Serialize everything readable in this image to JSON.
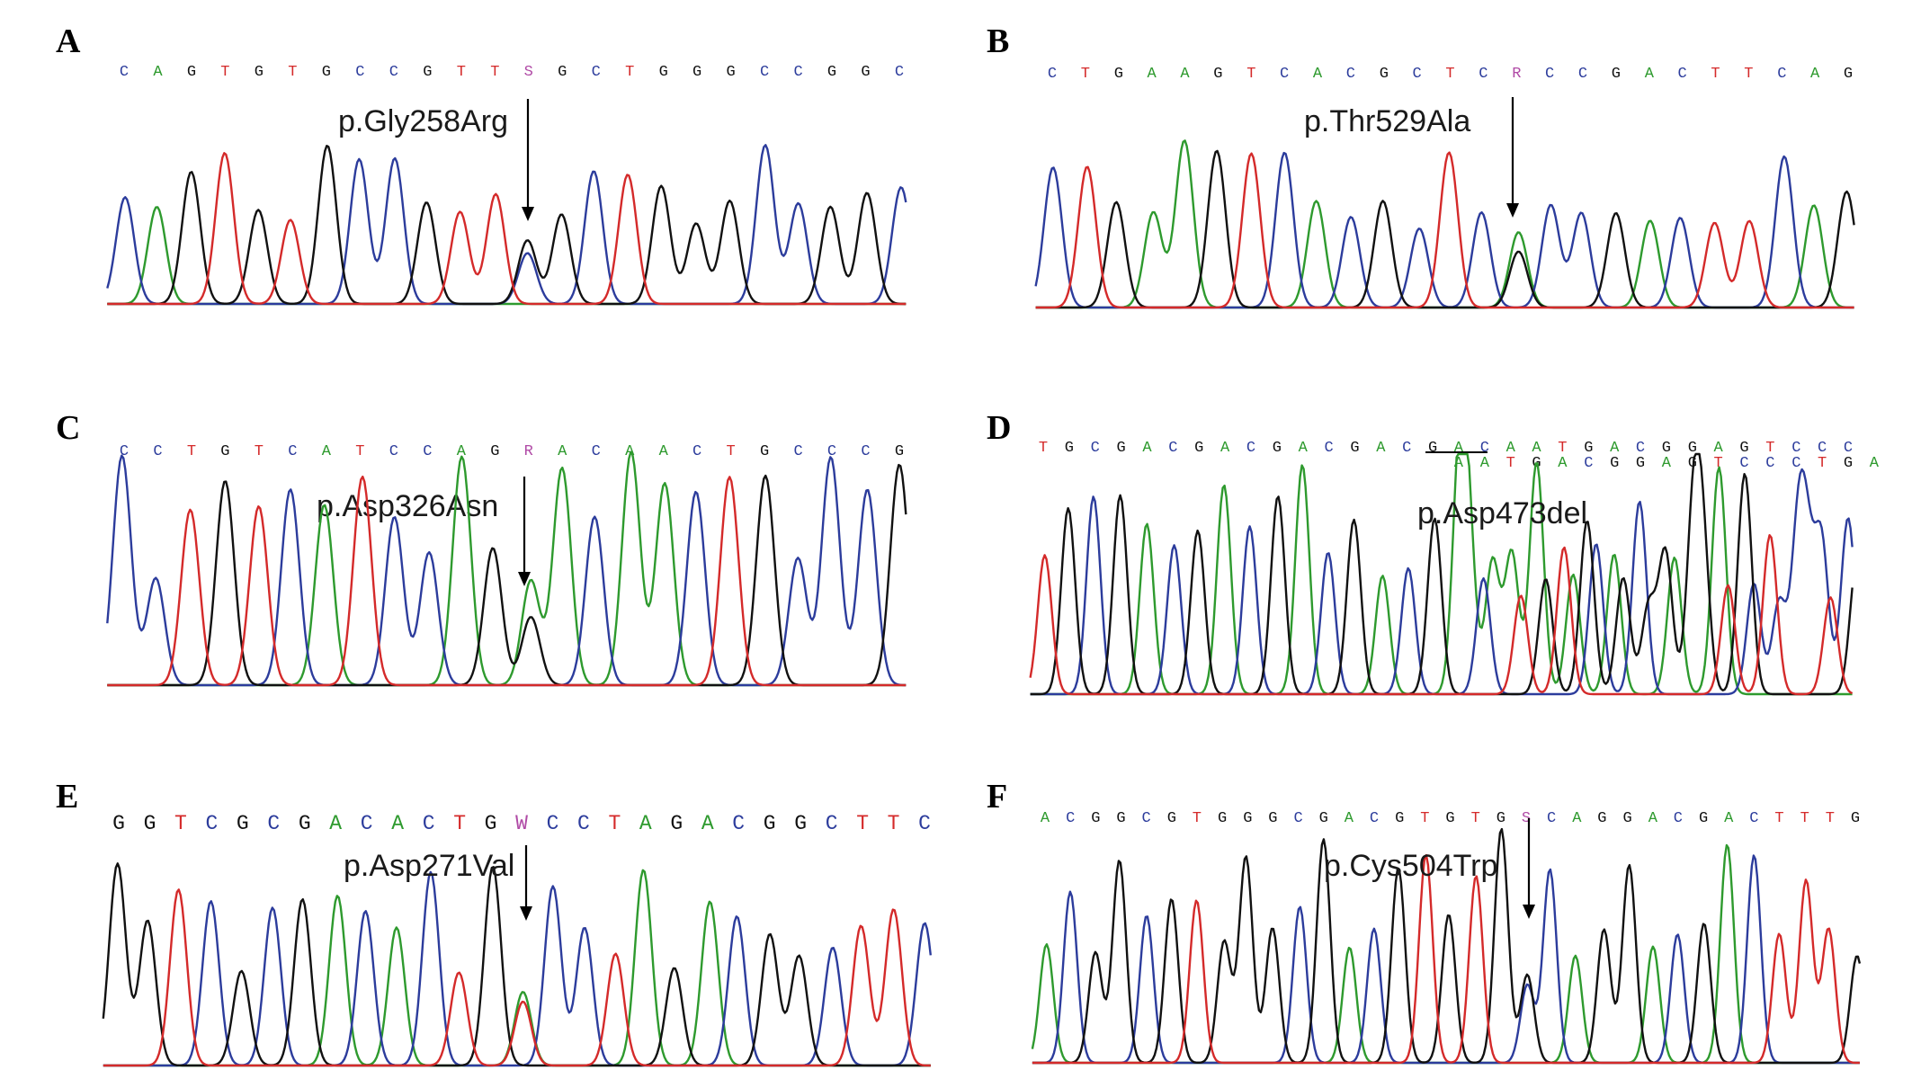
{
  "colors": {
    "A": "#2e9a2e",
    "C": "#2c3c9c",
    "G": "#111111",
    "T": "#d42a2a",
    "ambiguous": "#b04aa6"
  },
  "panels": [
    {
      "id": "A",
      "letter": "A",
      "sequence": [
        "C",
        "A",
        "G",
        "T",
        "G",
        "T",
        "G",
        "C",
        "C",
        "G",
        "T",
        "T",
        "S",
        "G",
        "C",
        "T",
        "G",
        "G",
        "G",
        "C",
        "C",
        "G",
        "G",
        "C"
      ],
      "sequence2": [],
      "mutation": "p.Gly258Arg"
    },
    {
      "id": "B",
      "letter": "B",
      "sequence": [
        "C",
        "T",
        "G",
        "A",
        "A",
        "G",
        "T",
        "C",
        "A",
        "C",
        "G",
        "C",
        "T",
        "C",
        "R",
        "C",
        "C",
        "G",
        "A",
        "C",
        "T",
        "T",
        "C",
        "A",
        "G"
      ],
      "sequence2": [],
      "mutation": "p.Thr529Ala"
    },
    {
      "id": "C",
      "letter": "C",
      "sequence": [
        "C",
        "C",
        "T",
        "G",
        "T",
        "C",
        "A",
        "T",
        "C",
        "C",
        "A",
        "G",
        "R",
        "A",
        "C",
        "A",
        "A",
        "C",
        "T",
        "G",
        "C",
        "C",
        "C",
        "G"
      ],
      "sequence2": [],
      "mutation": "p.Asp326Asn"
    },
    {
      "id": "D",
      "letter": "D",
      "sequence": [
        "T",
        "G",
        "C",
        "G",
        "A",
        "C",
        "G",
        "A",
        "C",
        "G",
        "A",
        "C",
        "G",
        "A",
        "C",
        "G",
        "A",
        "C",
        "A",
        "A",
        "T",
        "G",
        "A",
        "C",
        "G",
        "G",
        "A",
        "G",
        "T",
        "C",
        "C",
        "C"
      ],
      "sequence2": [
        "A",
        "A",
        "T",
        "G",
        "A",
        "C",
        "G",
        "G",
        "A",
        "G",
        "T",
        "C",
        "C",
        "C",
        "T",
        "G",
        "A"
      ],
      "mutation": "p.Asp473del"
    },
    {
      "id": "E",
      "letter": "E",
      "sequence": [
        "G",
        "G",
        "T",
        "C",
        "G",
        "C",
        "G",
        "A",
        "C",
        "A",
        "C",
        "T",
        "G",
        "W",
        "C",
        "C",
        "T",
        "A",
        "G",
        "A",
        "C",
        "G",
        "G",
        "C",
        "T",
        "T",
        "C"
      ],
      "sequence2": [],
      "mutation": "p.Asp271Val"
    },
    {
      "id": "F",
      "letter": "F",
      "sequence": [
        "A",
        "C",
        "G",
        "G",
        "C",
        "G",
        "T",
        "G",
        "G",
        "G",
        "C",
        "G",
        "A",
        "C",
        "G",
        "T",
        "G",
        "T",
        "G",
        "S",
        "C",
        "A",
        "G",
        "G",
        "A",
        "C",
        "G",
        "A",
        "C",
        "T",
        "T",
        "T",
        "G"
      ],
      "sequence2": [],
      "mutation": "p.Cys504Trp"
    }
  ]
}
